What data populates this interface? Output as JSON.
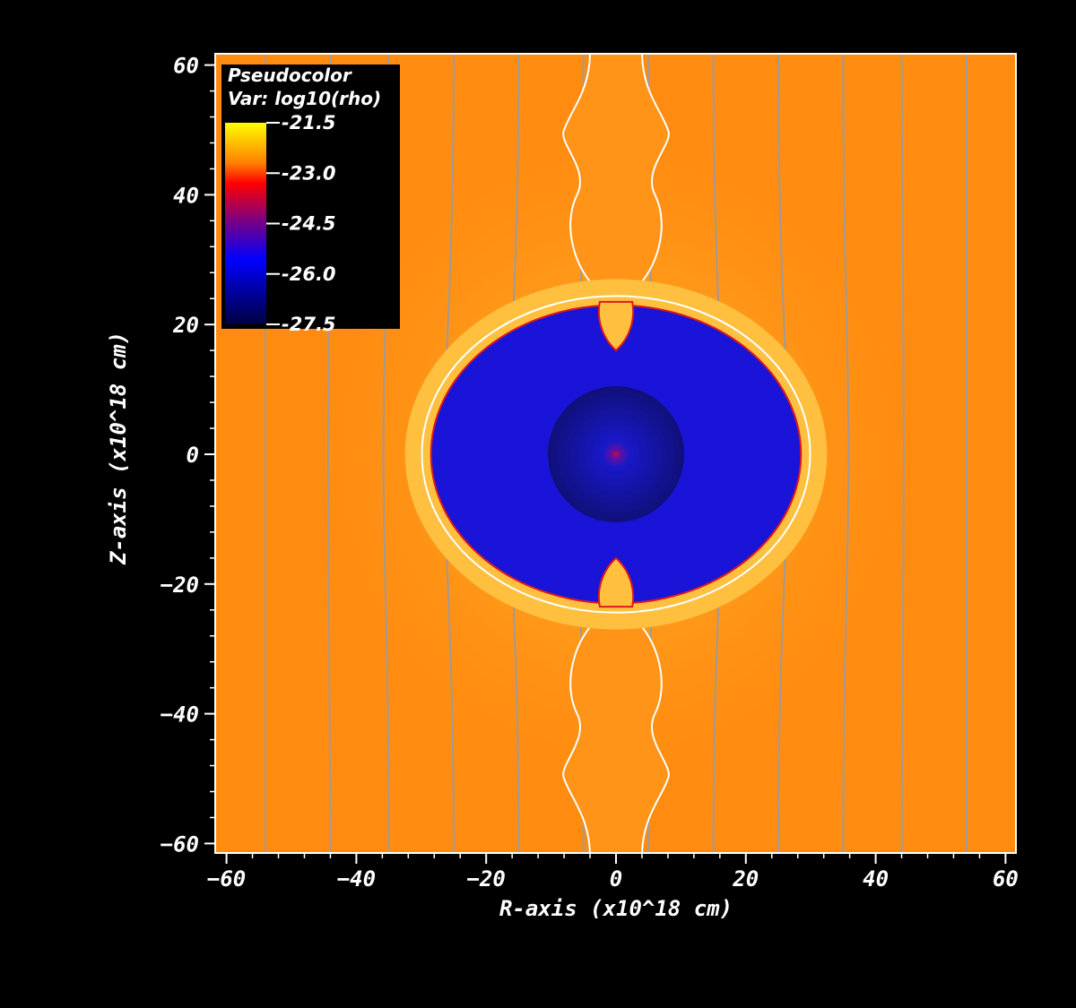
{
  "chart_data": {
    "type": "heatmap",
    "plot_type_label": "Pseudocolor",
    "variable_label": "Var: log10(rho)",
    "xlabel": "R-axis (x10^18 cm)",
    "ylabel": "Z-axis (x10^18 cm)",
    "xlim": [
      -62,
      62
    ],
    "ylim": [
      -62,
      62
    ],
    "xticks": [
      -60,
      -40,
      -20,
      0,
      20,
      40,
      60
    ],
    "xtick_labels": [
      "−60",
      "−40",
      "−20",
      "0",
      "20",
      "40",
      "60"
    ],
    "yticks": [
      60,
      40,
      20,
      0,
      -20,
      -40,
      -60
    ],
    "ytick_labels": [
      "60",
      "40",
      "20",
      "0",
      "−20",
      "−40",
      "−60"
    ],
    "colorbar": {
      "range": [
        -27.5,
        -21.5
      ],
      "ticks": [
        -21.5,
        -23.0,
        -24.5,
        -26.0,
        -27.5
      ],
      "tick_labels": [
        "-21.5",
        "-23.0",
        "-24.5",
        "-26.0",
        "-27.5"
      ],
      "colors": [
        "#ffff00",
        "#ff7f00",
        "#ff0000",
        "#7f007f",
        "#0000ff",
        "#000040"
      ]
    },
    "colors": {
      "ambient": "#ff8c10",
      "bubble_interior": "#1a14d8",
      "shell": "#ffc040",
      "field_lines": "#a09a98",
      "contour": "#ffffff"
    },
    "field_line_R": [
      -54,
      -44,
      -35,
      -25,
      -15,
      -5,
      5,
      15,
      25,
      35,
      44,
      54
    ],
    "bubble": {
      "radius_R": 28.5,
      "radius_Z": 23,
      "shell_thickness": 4,
      "core_radius": 10.5
    }
  }
}
